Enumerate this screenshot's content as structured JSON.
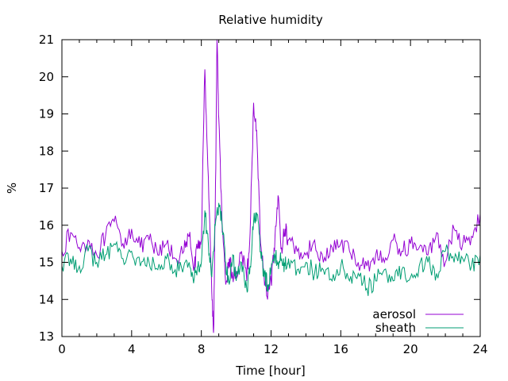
{
  "chart_data": {
    "type": "line",
    "title": "Relative humidity",
    "xlabel": "Time [hour]",
    "ylabel": "%",
    "xlim": [
      0,
      24
    ],
    "ylim": [
      13,
      21
    ],
    "x_ticks": [
      0,
      4,
      8,
      12,
      16,
      20,
      24
    ],
    "y_ticks": [
      13,
      14,
      15,
      16,
      17,
      18,
      19,
      20,
      21
    ],
    "grid": false,
    "legend_position": "bottom-right",
    "series": [
      {
        "name": "aerosol",
        "color": "#9400d3",
        "x": [
          0,
          0.5,
          1,
          1.5,
          2,
          2.5,
          3,
          3.5,
          4,
          4.5,
          5,
          5.5,
          6,
          6.5,
          7,
          7.3,
          7.6,
          7.8,
          8.0,
          8.2,
          8.4,
          8.6,
          8.7,
          8.8,
          8.9,
          9.0,
          9.2,
          9.4,
          9.6,
          9.8,
          10.0,
          10.3,
          10.6,
          10.8,
          11.0,
          11.2,
          11.4,
          11.6,
          11.8,
          12.0,
          12.2,
          12.4,
          12.6,
          12.8,
          13.0,
          13.5,
          14,
          14.5,
          15,
          15.5,
          16,
          16.5,
          17,
          17.5,
          18,
          18.5,
          19,
          19.5,
          20,
          20.5,
          21,
          21.5,
          22,
          22.5,
          23,
          23.5,
          24
        ],
        "y": [
          15.3,
          15.8,
          15.4,
          15.6,
          15.2,
          15.7,
          16.1,
          15.5,
          15.9,
          15.4,
          15.6,
          15.2,
          15.5,
          15.1,
          15.3,
          15.7,
          14.9,
          15.4,
          15.6,
          20.2,
          17.3,
          14.2,
          13.1,
          16.5,
          21.0,
          18.9,
          15.8,
          14.4,
          15.1,
          14.6,
          14.7,
          15.3,
          14.5,
          15.8,
          19.3,
          18.2,
          15.5,
          14.6,
          14.0,
          14.5,
          15.3,
          16.8,
          15.4,
          15.9,
          15.6,
          15.3,
          15.2,
          15.6,
          15.0,
          15.4,
          15.5,
          15.3,
          15.0,
          14.9,
          15.2,
          15.0,
          15.6,
          15.3,
          15.5,
          15.4,
          15.2,
          15.8,
          15.0,
          15.9,
          15.5,
          15.7,
          16.3
        ]
      },
      {
        "name": "sheath",
        "color": "#009e73",
        "x": [
          0,
          0.5,
          1,
          1.5,
          2,
          2.5,
          3,
          3.5,
          4,
          4.5,
          5,
          5.5,
          6,
          6.5,
          7,
          7.3,
          7.6,
          7.8,
          8.0,
          8.2,
          8.4,
          8.6,
          8.8,
          9.0,
          9.2,
          9.4,
          9.6,
          9.8,
          10.0,
          10.3,
          10.6,
          10.8,
          11.0,
          11.2,
          11.4,
          11.6,
          11.8,
          12.0,
          12.2,
          12.4,
          12.6,
          12.8,
          13.0,
          13.5,
          14,
          14.5,
          15,
          15.5,
          16,
          16.5,
          17,
          17.5,
          18,
          18.5,
          19,
          19.5,
          20,
          20.5,
          21,
          21.5,
          22,
          22.5,
          23,
          23.5,
          24
        ],
        "y": [
          14.9,
          15.1,
          14.9,
          15.3,
          15.0,
          15.2,
          15.5,
          15.1,
          15.3,
          14.9,
          15.0,
          14.8,
          15.1,
          14.8,
          14.9,
          15.0,
          14.6,
          14.9,
          15.0,
          16.4,
          15.5,
          14.6,
          16.0,
          16.6,
          16.0,
          15.0,
          14.4,
          15.2,
          14.5,
          15.0,
          14.3,
          14.9,
          16.1,
          16.3,
          15.3,
          14.6,
          14.4,
          14.8,
          15.2,
          15.0,
          15.1,
          14.9,
          15.1,
          14.8,
          15.0,
          14.7,
          14.8,
          14.5,
          14.9,
          14.5,
          14.7,
          14.3,
          14.5,
          14.8,
          14.5,
          14.8,
          14.6,
          14.9,
          15.0,
          14.7,
          15.3,
          15.0,
          15.1,
          14.9,
          15.2
        ]
      }
    ]
  }
}
